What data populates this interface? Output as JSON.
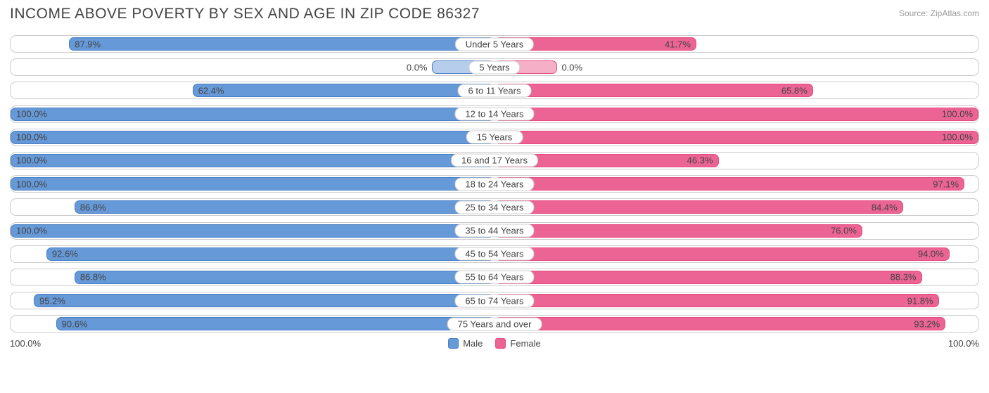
{
  "title": "INCOME ABOVE POVERTY BY SEX AND AGE IN ZIP CODE 86327",
  "source": "Source: ZipAtlas.com",
  "axis_left": "100.0%",
  "axis_right": "100.0%",
  "colors": {
    "male_fill": "#6699d8",
    "male_border": "#4a7fc4",
    "male_zero_fill": "#b6cdeb",
    "female_fill": "#ec6493",
    "female_border": "#e64a80",
    "female_zero_fill": "#f5b0c8",
    "row_border": "#cccccc",
    "text": "#444444",
    "title_color": "#444444",
    "source_color": "#999999",
    "background": "#ffffff"
  },
  "legend": {
    "male": "Male",
    "female": "Female"
  },
  "chart": {
    "type": "diverging-bar",
    "min_bar_pct": 13,
    "rows": [
      {
        "category": "Under 5 Years",
        "male": 87.9,
        "male_label": "87.9%",
        "female": 41.7,
        "female_label": "41.7%"
      },
      {
        "category": "5 Years",
        "male": 0.0,
        "male_label": "0.0%",
        "female": 0.0,
        "female_label": "0.0%"
      },
      {
        "category": "6 to 11 Years",
        "male": 62.4,
        "male_label": "62.4%",
        "female": 65.8,
        "female_label": "65.8%"
      },
      {
        "category": "12 to 14 Years",
        "male": 100.0,
        "male_label": "100.0%",
        "female": 100.0,
        "female_label": "100.0%"
      },
      {
        "category": "15 Years",
        "male": 100.0,
        "male_label": "100.0%",
        "female": 100.0,
        "female_label": "100.0%"
      },
      {
        "category": "16 and 17 Years",
        "male": 100.0,
        "male_label": "100.0%",
        "female": 46.3,
        "female_label": "46.3%"
      },
      {
        "category": "18 to 24 Years",
        "male": 100.0,
        "male_label": "100.0%",
        "female": 97.1,
        "female_label": "97.1%"
      },
      {
        "category": "25 to 34 Years",
        "male": 86.8,
        "male_label": "86.8%",
        "female": 84.4,
        "female_label": "84.4%"
      },
      {
        "category": "35 to 44 Years",
        "male": 100.0,
        "male_label": "100.0%",
        "female": 76.0,
        "female_label": "76.0%"
      },
      {
        "category": "45 to 54 Years",
        "male": 92.6,
        "male_label": "92.6%",
        "female": 94.0,
        "female_label": "94.0%"
      },
      {
        "category": "55 to 64 Years",
        "male": 86.8,
        "male_label": "86.8%",
        "female": 88.3,
        "female_label": "88.3%"
      },
      {
        "category": "65 to 74 Years",
        "male": 95.2,
        "male_label": "95.2%",
        "female": 91.8,
        "female_label": "91.8%"
      },
      {
        "category": "75 Years and over",
        "male": 90.6,
        "male_label": "90.6%",
        "female": 93.2,
        "female_label": "93.2%"
      }
    ]
  }
}
